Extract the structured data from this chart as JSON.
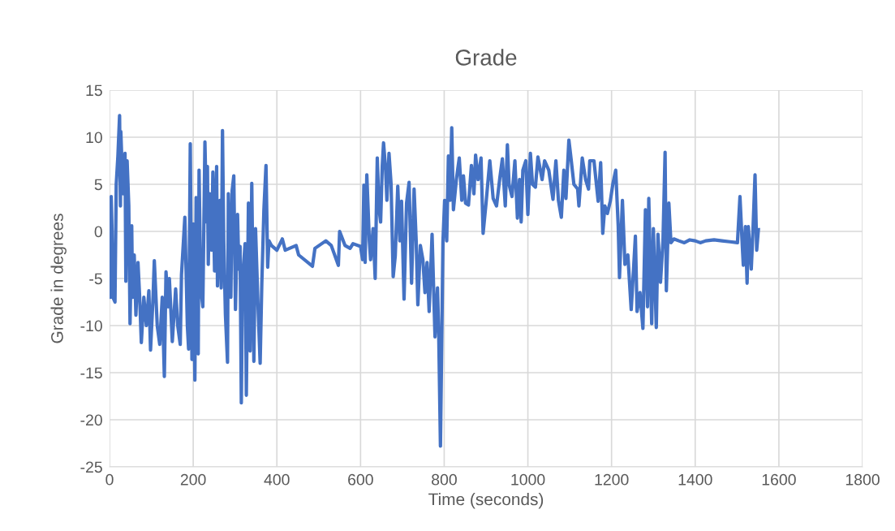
{
  "chart_data": {
    "type": "line",
    "title": "Grade",
    "xlabel": "Time (seconds)",
    "ylabel": "Grade in degrees",
    "x": [
      0,
      2,
      4,
      6,
      8,
      13,
      16,
      20,
      24,
      26,
      27,
      29,
      33,
      37,
      39,
      42,
      46,
      49,
      53,
      55,
      59,
      63,
      68,
      72,
      76,
      82,
      88,
      94,
      98,
      104,
      107,
      114,
      120,
      126,
      131,
      135,
      140,
      143,
      150,
      158,
      163,
      169,
      172,
      180,
      186,
      189,
      193,
      197,
      200,
      204,
      207,
      212,
      214,
      218,
      223,
      228,
      232,
      234,
      236,
      239,
      244,
      247,
      251,
      256,
      258,
      264,
      267,
      270,
      273,
      277,
      282,
      284,
      290,
      293,
      297,
      301,
      306,
      309,
      312,
      315,
      318,
      324,
      327,
      332,
      336,
      340,
      345,
      349,
      355,
      360,
      364,
      369,
      374,
      378,
      381,
      387,
      400,
      413,
      420,
      446,
      452,
      485,
      491,
      517,
      530,
      547,
      550,
      563,
      575,
      582,
      600,
      605,
      608,
      611,
      615,
      621,
      624,
      630,
      635,
      640,
      644,
      648,
      652,
      655,
      660,
      663,
      668,
      673,
      678,
      683,
      689,
      694,
      698,
      704,
      710,
      716,
      722,
      728,
      733,
      737,
      743,
      749,
      754,
      759,
      764,
      771,
      778,
      784,
      787,
      791,
      794,
      797,
      801,
      806,
      810,
      814,
      818,
      822,
      829,
      836,
      842,
      846,
      851,
      858,
      865,
      871,
      875,
      881,
      888,
      893,
      900,
      909,
      917,
      925,
      933,
      939,
      946,
      951,
      955,
      962,
      969,
      975,
      980,
      984,
      988,
      995,
      1000,
      1006,
      1011,
      1018,
      1024,
      1034,
      1040,
      1050,
      1060,
      1067,
      1073,
      1080,
      1086,
      1091,
      1098,
      1103,
      1110,
      1119,
      1122,
      1130,
      1138,
      1145,
      1148,
      1158,
      1168,
      1174,
      1179,
      1184,
      1190,
      1197,
      1203,
      1210,
      1216,
      1219,
      1226,
      1232,
      1239,
      1247,
      1253,
      1257,
      1261,
      1268,
      1275,
      1281,
      1286,
      1289,
      1296,
      1300,
      1307,
      1311,
      1317,
      1323,
      1328,
      1331,
      1337,
      1342,
      1349,
      1361,
      1374,
      1387,
      1400,
      1412,
      1425,
      1445,
      1464,
      1483,
      1501,
      1507,
      1512,
      1515,
      1520,
      1524,
      1527,
      1534,
      1538,
      1543,
      1547,
      1551
    ],
    "series": [
      {
        "color": "#4472c4",
        "values": [
          1.5,
          -7,
          3.7,
          0,
          -7,
          -7.5,
          5,
          8,
          12.3,
          2.7,
          10.6,
          8,
          4,
          8.3,
          -5.3,
          7.5,
          2.7,
          -9.8,
          0.6,
          -7,
          -2.5,
          -8.9,
          -3.3,
          -7,
          -11.8,
          -7,
          -10,
          -6.3,
          -12.6,
          -7,
          -3.1,
          -10,
          -12,
          -7,
          -15.4,
          -4.3,
          -8,
          -5,
          -11.7,
          -6.1,
          -10,
          -12,
          -4.6,
          1.5,
          -10,
          -12.5,
          9.3,
          -13.6,
          0.8,
          -15.8,
          3.6,
          -13,
          6.5,
          -6,
          -8,
          9.5,
          1,
          6.9,
          -3.5,
          4,
          -2,
          6.3,
          -4.2,
          6.9,
          -5.8,
          3.3,
          -6,
          10.7,
          -1,
          -8.8,
          -13.9,
          4,
          -7,
          4.3,
          5.9,
          -8.3,
          1.8,
          -4,
          -1.6,
          -18.2,
          -5,
          -1.3,
          -17.4,
          3,
          -12.7,
          5.1,
          -13.8,
          0.3,
          -8,
          -14,
          -5.5,
          2.3,
          7,
          -3.8,
          -1,
          -1.5,
          -2,
          -0.8,
          -2,
          -1.5,
          -2.5,
          -3.7,
          -1.8,
          -1,
          -1.5,
          -3.6,
          0,
          -1.5,
          -1.8,
          -1.3,
          -1.6,
          -3,
          4.9,
          -3.3,
          6,
          -1,
          -3,
          0.3,
          -5,
          7.8,
          2.5,
          1,
          7,
          9.4,
          6.5,
          3.3,
          8.3,
          5,
          -4.8,
          -2.6,
          4.8,
          -1,
          3.2,
          -7.2,
          3,
          5.2,
          -5.5,
          4.5,
          -1,
          -7.8,
          -1.5,
          -3,
          -6.5,
          -3.3,
          -8.5,
          -0.3,
          -11.2,
          -6,
          -11.2,
          -22.8,
          -12,
          -1.1,
          3.3,
          -1,
          8,
          3.3,
          11,
          2.3,
          5.5,
          7.8,
          3.3,
          5.9,
          3,
          2.8,
          7,
          4,
          8.1,
          5.5,
          7.8,
          -0.2,
          3,
          7.5,
          3.5,
          2.7,
          5.7,
          7.7,
          2.7,
          9.2,
          5,
          3.7,
          7.5,
          1.4,
          5.5,
          1,
          6.5,
          7.5,
          1.8,
          8.3,
          5,
          4.7,
          7.9,
          5.5,
          7.5,
          6.5,
          3.4,
          7.5,
          3.3,
          1.5,
          6.5,
          3.5,
          9.7,
          7.8,
          5,
          4.5,
          2.7,
          7.8,
          5.5,
          4.5,
          7.5,
          7.5,
          3.2,
          7.3,
          -0.2,
          2.7,
          1.9,
          3.2,
          5,
          6.5,
          0.5,
          -4.9,
          3.3,
          -3.5,
          -2.5,
          -8.3,
          -3.7,
          -0.5,
          -8.5,
          -6.5,
          -10.3,
          2.3,
          -8,
          3.5,
          -9.8,
          0.3,
          -10.2,
          -0.3,
          -5.4,
          -1,
          8.4,
          -6.3,
          3,
          -1.2,
          -0.8,
          -1,
          -1.2,
          -0.9,
          -1,
          -1.2,
          -1,
          -0.9,
          -1,
          -1.1,
          -1.2,
          3.7,
          -1,
          -3.6,
          0.5,
          -5.5,
          0.5,
          -4,
          0,
          6,
          -2,
          0.2
        ]
      }
    ],
    "xlim": [
      0,
      1800
    ],
    "xticks": [
      0,
      200,
      400,
      600,
      800,
      1000,
      1200,
      1400,
      1600,
      1800
    ],
    "ylim": [
      -25,
      15
    ],
    "yticks": [
      -25,
      -20,
      -15,
      -10,
      -5,
      0,
      5,
      10,
      15
    ],
    "grid": true,
    "marker": "none",
    "line_style": "solid"
  }
}
